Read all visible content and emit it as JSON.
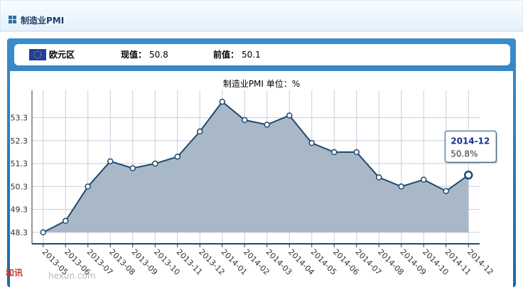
{
  "header": {
    "title": "制造业PMI"
  },
  "info": {
    "region": "欧元区",
    "current_label": "现值：",
    "current": 50.8,
    "previous_label": "前值：",
    "previous": 50.1
  },
  "tooltip": {
    "value_label": "50.8%"
  },
  "watermark": {
    "logo": "和讯",
    "site": "hexun.com"
  },
  "chart_data": {
    "type": "area",
    "title": "制造业PMI 单位：%",
    "categories": [
      "2013-05",
      "2013-06",
      "2013-07",
      "2013-08",
      "2013-09",
      "2013-10",
      "2013-11",
      "2013-12",
      "2014-01",
      "2014-02",
      "2014-03",
      "2014-04",
      "2014-05",
      "2014-06",
      "2014-07",
      "2014-08",
      "2014-09",
      "2014-10",
      "2014-11",
      "2014-12"
    ],
    "values": [
      48.3,
      48.8,
      50.3,
      51.4,
      51.1,
      51.3,
      51.6,
      52.7,
      54.0,
      53.2,
      53.0,
      53.4,
      52.2,
      51.8,
      51.8,
      50.7,
      50.3,
      50.6,
      50.1,
      50.8
    ],
    "color": "#1d4a70",
    "fill": "#a9b8c7",
    "ylim": [
      47.8,
      54.5
    ],
    "yticks": [
      48.3,
      49.3,
      50.3,
      51.3,
      52.3,
      53.3
    ],
    "grid": true
  }
}
